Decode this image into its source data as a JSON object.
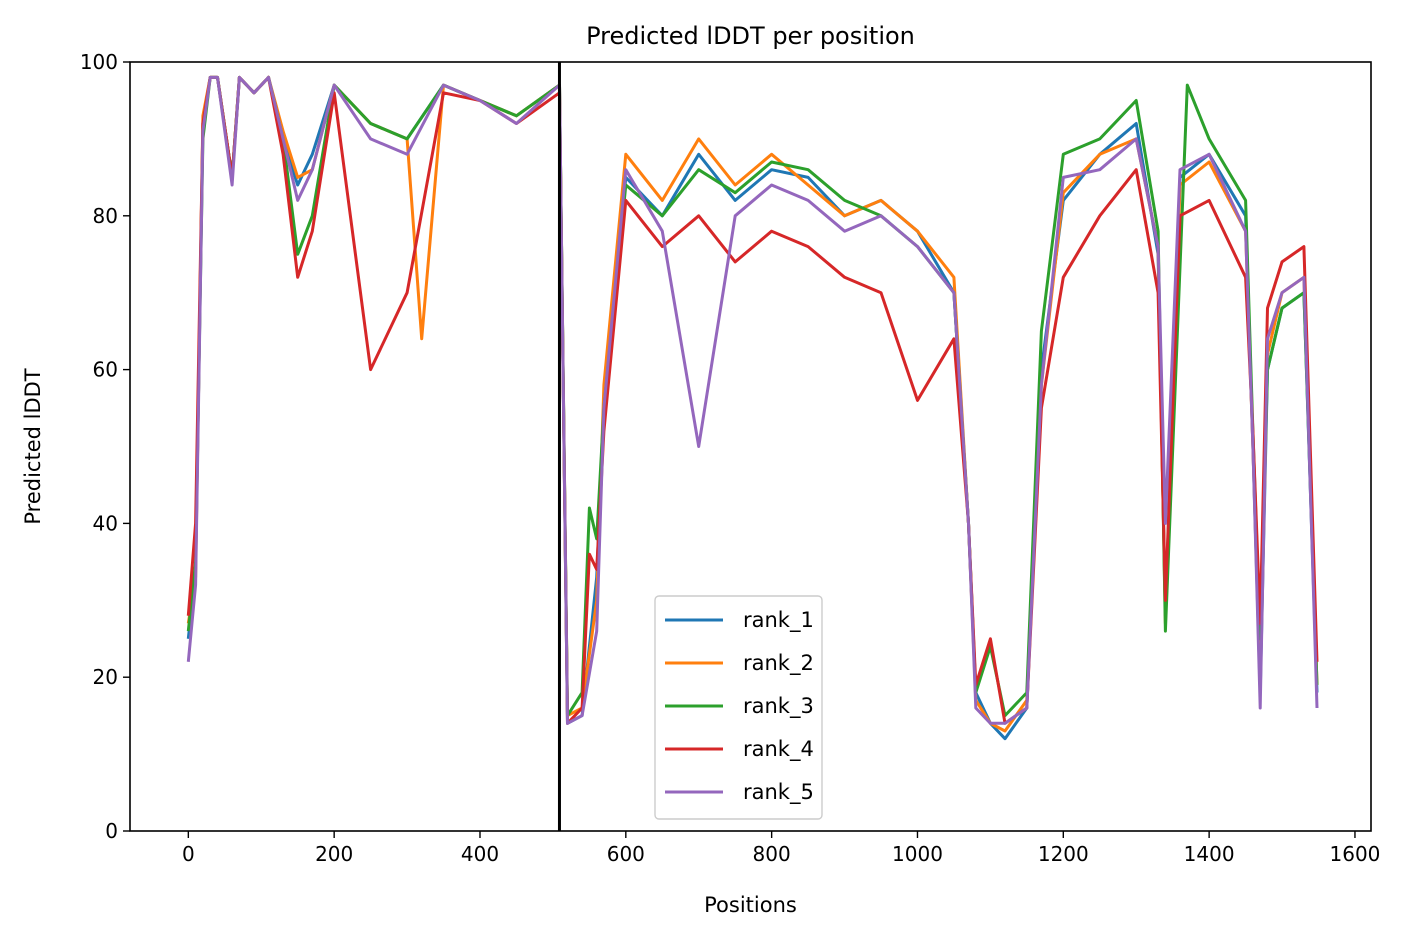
{
  "chart_data": {
    "type": "line",
    "title": "Predicted lDDT per position",
    "xlabel": "Positions",
    "ylabel": "Predicted lDDT",
    "xlim": [
      -80,
      1622
    ],
    "ylim": [
      0,
      100
    ],
    "xticks": [
      0,
      200,
      400,
      600,
      800,
      1000,
      1200,
      1400,
      1600
    ],
    "yticks": [
      0,
      20,
      40,
      60,
      80,
      100
    ],
    "grid": false,
    "legend_position": "lower-center",
    "vline_x": 509,
    "series_colors": [
      "#1f77b4",
      "#ff7f0e",
      "#2ca02c",
      "#d62728",
      "#9467bd"
    ],
    "series": [
      {
        "name": "rank_1",
        "x": [
          0,
          10,
          20,
          30,
          40,
          60,
          70,
          90,
          110,
          130,
          150,
          170,
          200,
          250,
          300,
          350,
          400,
          450,
          509,
          520,
          540,
          560,
          570,
          600,
          650,
          700,
          750,
          800,
          850,
          900,
          950,
          1000,
          1050,
          1070,
          1080,
          1100,
          1120,
          1150,
          1170,
          1200,
          1250,
          1300,
          1330,
          1340,
          1360,
          1400,
          1450,
          1460,
          1470,
          1480,
          1500,
          1530,
          1548
        ],
        "y": [
          25,
          34,
          92,
          98,
          98,
          85,
          98,
          96,
          98,
          90,
          84,
          88,
          97,
          92,
          90,
          97,
          95,
          93,
          97,
          14,
          15,
          33,
          55,
          85,
          80,
          88,
          82,
          86,
          85,
          80,
          82,
          78,
          70,
          40,
          18,
          14,
          12,
          16,
          60,
          82,
          88,
          92,
          75,
          28,
          85,
          88,
          80,
          50,
          18,
          60,
          68,
          70,
          18
        ]
      },
      {
        "name": "rank_2",
        "x": [
          0,
          10,
          20,
          30,
          40,
          60,
          70,
          90,
          110,
          130,
          150,
          170,
          200,
          250,
          300,
          320,
          350,
          400,
          450,
          509,
          520,
          540,
          560,
          570,
          600,
          650,
          700,
          750,
          800,
          850,
          900,
          950,
          1000,
          1050,
          1070,
          1080,
          1100,
          1120,
          1150,
          1170,
          1200,
          1250,
          1300,
          1330,
          1340,
          1360,
          1400,
          1450,
          1460,
          1470,
          1480,
          1500,
          1530,
          1548
        ],
        "y": [
          27,
          33,
          93,
          98,
          98,
          85,
          98,
          96,
          98,
          91,
          85,
          86,
          97,
          92,
          90,
          64,
          97,
          95,
          93,
          97,
          15,
          16,
          30,
          58,
          88,
          82,
          90,
          84,
          88,
          84,
          80,
          82,
          78,
          72,
          40,
          17,
          14,
          13,
          17,
          58,
          83,
          88,
          90,
          76,
          27,
          84,
          87,
          78,
          50,
          19,
          62,
          70,
          72,
          19
        ]
      },
      {
        "name": "rank_3",
        "x": [
          0,
          10,
          20,
          30,
          40,
          60,
          70,
          90,
          110,
          130,
          150,
          170,
          200,
          250,
          300,
          350,
          400,
          450,
          509,
          520,
          540,
          550,
          560,
          570,
          600,
          650,
          700,
          750,
          800,
          850,
          900,
          950,
          1000,
          1050,
          1070,
          1080,
          1100,
          1120,
          1150,
          1170,
          1200,
          1250,
          1300,
          1330,
          1340,
          1370,
          1400,
          1450,
          1460,
          1470,
          1480,
          1500,
          1530,
          1548
        ],
        "y": [
          26,
          35,
          90,
          98,
          98,
          85,
          98,
          96,
          98,
          90,
          75,
          80,
          97,
          92,
          90,
          97,
          95,
          93,
          97,
          15,
          18,
          42,
          38,
          55,
          84,
          80,
          86,
          83,
          87,
          86,
          82,
          80,
          76,
          70,
          40,
          18,
          24,
          15,
          18,
          65,
          88,
          90,
          95,
          78,
          26,
          97,
          90,
          82,
          52,
          25,
          60,
          68,
          70,
          19
        ]
      },
      {
        "name": "rank_4",
        "x": [
          0,
          10,
          20,
          30,
          40,
          60,
          70,
          90,
          110,
          130,
          150,
          170,
          200,
          250,
          300,
          350,
          400,
          450,
          509,
          520,
          540,
          550,
          560,
          570,
          600,
          650,
          700,
          750,
          800,
          850,
          900,
          950,
          1000,
          1050,
          1070,
          1080,
          1100,
          1120,
          1150,
          1170,
          1200,
          1250,
          1300,
          1330,
          1340,
          1360,
          1400,
          1450,
          1460,
          1470,
          1480,
          1500,
          1530,
          1548
        ],
        "y": [
          28,
          40,
          92,
          98,
          98,
          85,
          98,
          96,
          98,
          88,
          72,
          78,
          96,
          60,
          70,
          96,
          95,
          92,
          96,
          14,
          16,
          36,
          34,
          52,
          82,
          76,
          80,
          74,
          78,
          76,
          72,
          70,
          56,
          64,
          40,
          19,
          25,
          14,
          16,
          55,
          72,
          80,
          86,
          70,
          30,
          80,
          82,
          72,
          52,
          27,
          68,
          74,
          76,
          22
        ]
      },
      {
        "name": "rank_5",
        "x": [
          0,
          10,
          20,
          30,
          40,
          60,
          70,
          90,
          110,
          130,
          150,
          170,
          200,
          250,
          300,
          350,
          400,
          450,
          509,
          520,
          540,
          560,
          570,
          600,
          650,
          700,
          750,
          800,
          850,
          900,
          950,
          1000,
          1050,
          1070,
          1080,
          1100,
          1120,
          1150,
          1170,
          1200,
          1250,
          1300,
          1330,
          1340,
          1360,
          1400,
          1450,
          1460,
          1470,
          1480,
          1500,
          1530,
          1548
        ],
        "y": [
          22,
          32,
          91,
          98,
          98,
          84,
          98,
          96,
          98,
          90,
          82,
          86,
          97,
          90,
          88,
          97,
          95,
          92,
          97,
          14,
          15,
          26,
          55,
          86,
          78,
          50,
          80,
          84,
          82,
          78,
          80,
          76,
          70,
          40,
          16,
          14,
          14,
          16,
          58,
          85,
          86,
          90,
          76,
          40,
          86,
          88,
          78,
          50,
          16,
          64,
          70,
          72,
          16
        ]
      }
    ]
  }
}
